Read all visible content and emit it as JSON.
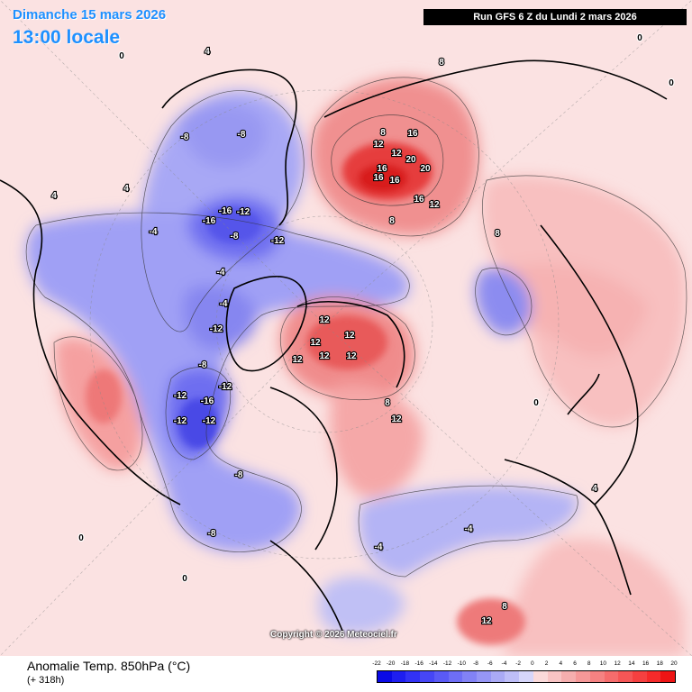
{
  "header": {
    "date": "Dimanche 15 mars 2026",
    "local_time": "13:00 locale",
    "run": "Run GFS 6 Z du Lundi 2 mars 2026"
  },
  "copyright": "Copyright © 2026 Meteociel.fr",
  "footer": {
    "variable": "Anomalie Temp. 850hPa (°C)",
    "lead_time": "(+ 318h)"
  },
  "legend": {
    "ticks": [
      "-22",
      "-20",
      "-18",
      "-16",
      "-14",
      "-12",
      "-10",
      "-8",
      "-6",
      "-4",
      "-2",
      "0",
      "2",
      "4",
      "6",
      "8",
      "10",
      "12",
      "14",
      "16",
      "18",
      "20"
    ],
    "colors": [
      "#0a0ae6",
      "#1e1ef0",
      "#3232f5",
      "#4646f5",
      "#5a5af5",
      "#6e6ef5",
      "#8282f5",
      "#9696f5",
      "#aaaaf5",
      "#bebef8",
      "#d6d6fa",
      "#fadada",
      "#f8c4c4",
      "#f5aeae",
      "#f59898",
      "#f58282",
      "#f56c6c",
      "#f55656",
      "#f54040",
      "#f52a2a",
      "#ee1414"
    ]
  },
  "contour_labels": [
    {
      "t": "8",
      "c": "red"
    },
    {
      "t": "12",
      "c": "red"
    },
    {
      "t": "12",
      "c": "red"
    },
    {
      "t": "16",
      "c": "red"
    },
    {
      "t": "20",
      "c": "red"
    },
    {
      "t": "20",
      "c": "red"
    },
    {
      "t": "16",
      "c": "red"
    },
    {
      "t": "16",
      "c": "red"
    },
    {
      "t": "12",
      "c": "red"
    },
    {
      "t": "8",
      "c": "red"
    },
    {
      "t": "16",
      "c": "red"
    },
    {
      "t": "16",
      "c": "red"
    },
    {
      "t": "12",
      "c": "red"
    },
    {
      "t": "12",
      "c": "red"
    },
    {
      "t": "12",
      "c": "red"
    },
    {
      "t": "12",
      "c": "red"
    },
    {
      "t": "8",
      "c": "red"
    },
    {
      "t": "12",
      "c": "red"
    },
    {
      "t": "12",
      "c": "red"
    },
    {
      "t": "12",
      "c": "red"
    },
    {
      "t": "12",
      "c": "red"
    },
    {
      "t": "8",
      "c": "red"
    },
    {
      "t": "-8",
      "c": "blue"
    },
    {
      "t": "-8",
      "c": "blue"
    },
    {
      "t": "-16",
      "c": "blue"
    },
    {
      "t": "-16",
      "c": "blue"
    },
    {
      "t": "-12",
      "c": "blue"
    },
    {
      "t": "-12",
      "c": "blue"
    },
    {
      "t": "-8",
      "c": "blue"
    },
    {
      "t": "-4",
      "c": "blue"
    },
    {
      "t": "-12",
      "c": "blue"
    },
    {
      "t": "-8",
      "c": "blue"
    },
    {
      "t": "-12",
      "c": "blue"
    },
    {
      "t": "-12",
      "c": "blue"
    },
    {
      "t": "-16",
      "c": "blue"
    },
    {
      "t": "-12",
      "c": "blue"
    },
    {
      "t": "-12",
      "c": "blue"
    },
    {
      "t": "-8",
      "c": "blue"
    },
    {
      "t": "-8",
      "c": "blue"
    },
    {
      "t": "-4",
      "c": "blue"
    },
    {
      "t": "-4",
      "c": "blue"
    },
    {
      "t": "-4",
      "c": "blue"
    },
    {
      "t": "-4",
      "c": "blue"
    },
    {
      "t": "4",
      "c": "red"
    },
    {
      "t": "4",
      "c": "red"
    },
    {
      "t": "4",
      "c": "red"
    },
    {
      "t": "8",
      "c": "red"
    },
    {
      "t": "8",
      "c": "red"
    },
    {
      "t": "4",
      "c": "red"
    },
    {
      "t": "0",
      "c": "black"
    },
    {
      "t": "0",
      "c": "black"
    },
    {
      "t": "0",
      "c": "black"
    },
    {
      "t": "0",
      "c": "black"
    },
    {
      "t": "0",
      "c": "black"
    },
    {
      "t": "0",
      "c": "black"
    }
  ]
}
